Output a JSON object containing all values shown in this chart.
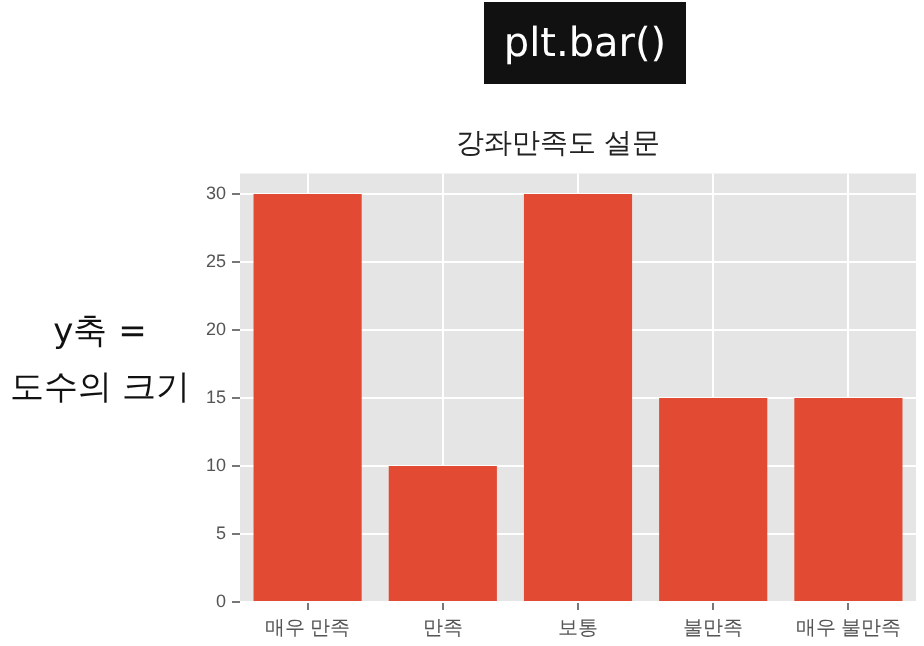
{
  "chart_data": {
    "type": "bar",
    "title": "강좌만족도 설문",
    "categories": [
      "매우 만족",
      "만족",
      "보통",
      "불만족",
      "매우 불만족"
    ],
    "values": [
      30,
      10,
      30,
      15,
      15
    ],
    "color": "#e24a33",
    "ylim": [
      0,
      31.5
    ],
    "yticks": [
      0,
      5,
      10,
      15,
      20,
      25,
      30
    ],
    "grid": true,
    "annotations": [
      "plt.bar()",
      "y축 =\n도수의 크기"
    ]
  }
}
